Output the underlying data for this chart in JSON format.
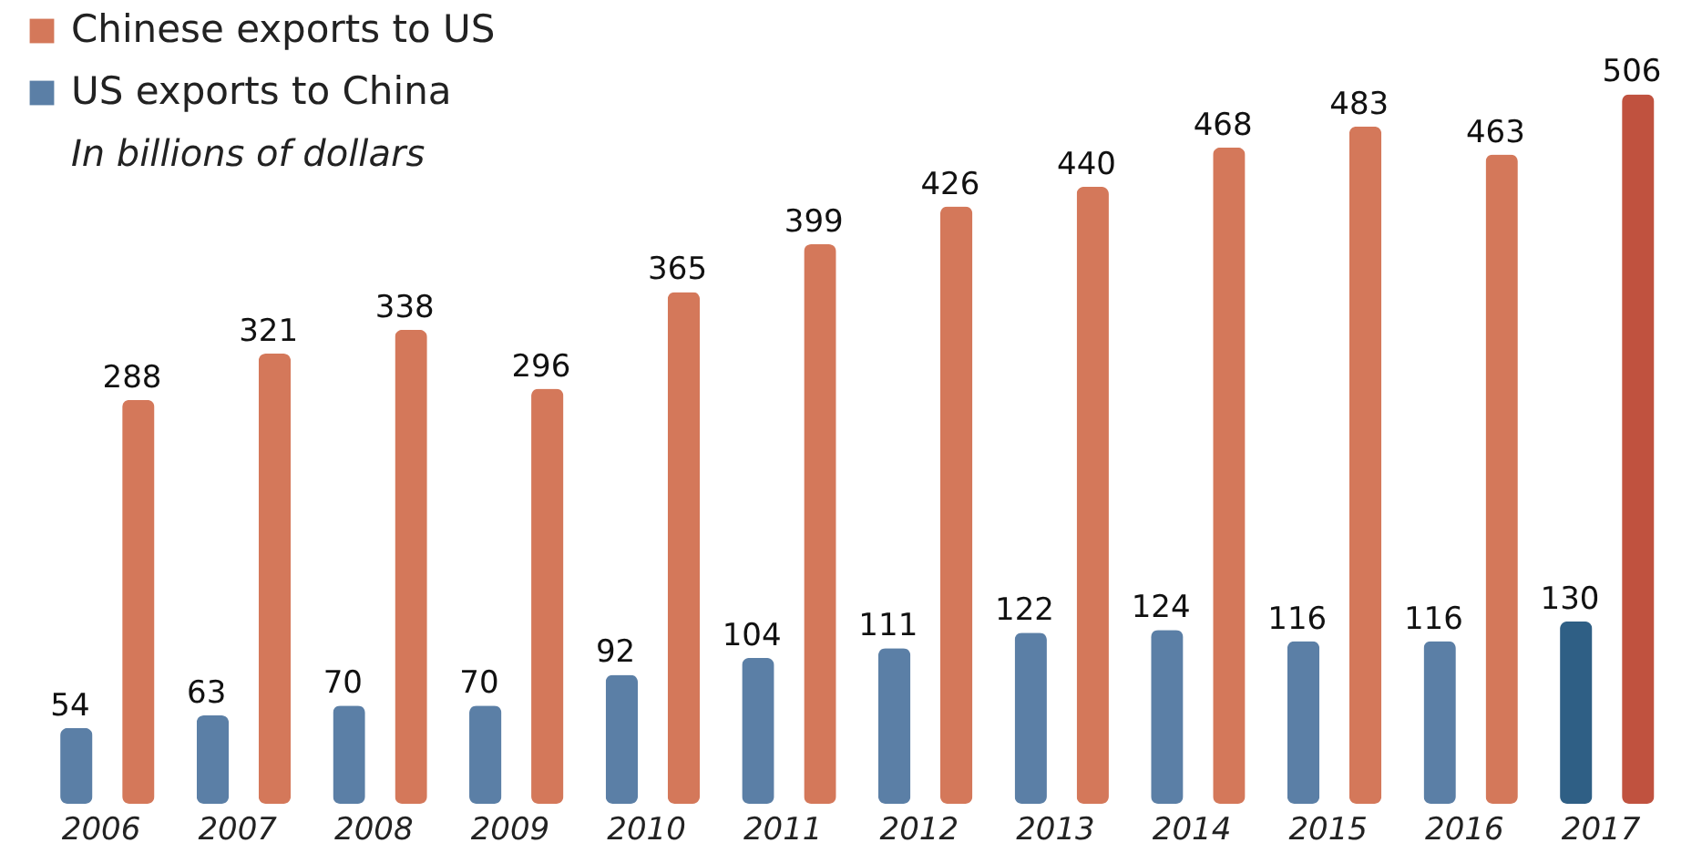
{
  "chart_data": {
    "type": "bar",
    "subtitle": "In billions of dollars",
    "categories": [
      "2006",
      "2007",
      "2008",
      "2009",
      "2010",
      "2011",
      "2012",
      "2013",
      "2014",
      "2015",
      "2016",
      "2017"
    ],
    "series": [
      {
        "name": "US exports to China",
        "color": "#5b7fa6",
        "colors": [
          "#5b7fa6",
          "#5b7fa6",
          "#5b7fa6",
          "#5b7fa6",
          "#5b7fa6",
          "#5b7fa6",
          "#5b7fa6",
          "#5b7fa6",
          "#5b7fa6",
          "#5b7fa6",
          "#5b7fa6",
          "#2f5f85"
        ],
        "values": [
          54,
          63,
          70,
          70,
          92,
          104,
          111,
          122,
          124,
          116,
          116,
          130
        ]
      },
      {
        "name": "Chinese exports to US",
        "color": "#d4785a",
        "colors": [
          "#d4785a",
          "#d4785a",
          "#d4785a",
          "#d4785a",
          "#d4785a",
          "#d4785a",
          "#d4785a",
          "#d4785a",
          "#d4785a",
          "#d4785a",
          "#d4785a",
          "#c0523f"
        ],
        "values": [
          288,
          321,
          338,
          296,
          365,
          399,
          426,
          440,
          468,
          483,
          463,
          506
        ]
      }
    ],
    "data_labels": true,
    "legend": "top left",
    "grid": false
  }
}
